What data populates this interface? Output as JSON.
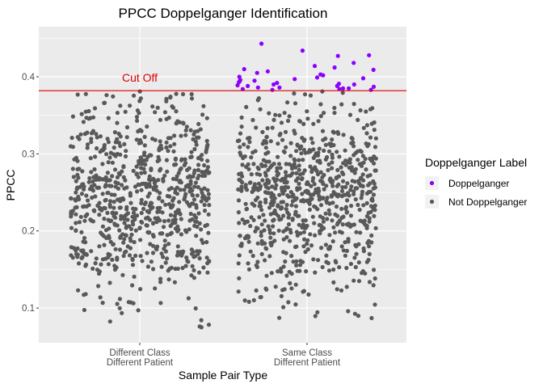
{
  "chart_data": {
    "type": "scatter",
    "title": "PPCC Doppelganger Identification",
    "xlabel": "Sample Pair Type",
    "ylabel": "PPCC",
    "categories": [
      "Different Class\nDifferent Patient",
      "Same Class\nDifferent Patient"
    ],
    "ylim": [
      0.055,
      0.465
    ],
    "yticks": [
      0.1,
      0.2,
      0.3,
      0.4
    ],
    "ytick_labels": [
      "0.1",
      "0.2",
      "0.3",
      "0.4"
    ],
    "grid": true,
    "jitter": "horizontal",
    "reference_line": {
      "y": 0.382,
      "color": "#DD0000",
      "label": "Cut Off"
    },
    "legend": {
      "title": "Doppelganger Label",
      "position": "right",
      "entries": [
        {
          "label": "Doppelganger",
          "color": "#8B00FF"
        },
        {
          "label": "Not Doppelganger",
          "color": "#595959"
        }
      ]
    },
    "series": [
      {
        "name": "Doppelganger",
        "color": "#8B00FF",
        "points": [
          {
            "x": "Same Class\nDifferent Patient",
            "y": 0.443
          },
          {
            "x": "Same Class\nDifferent Patient",
            "y": 0.434
          },
          {
            "x": "Same Class\nDifferent Patient",
            "y": 0.427
          },
          {
            "x": "Same Class\nDifferent Patient",
            "y": 0.428
          },
          {
            "x": "Same Class\nDifferent Patient",
            "y": 0.418
          },
          {
            "x": "Same Class\nDifferent Patient",
            "y": 0.414
          },
          {
            "x": "Same Class\nDifferent Patient",
            "y": 0.412
          },
          {
            "x": "Same Class\nDifferent Patient",
            "y": 0.41
          },
          {
            "x": "Same Class\nDifferent Patient",
            "y": 0.409
          },
          {
            "x": "Same Class\nDifferent Patient",
            "y": 0.407
          },
          {
            "x": "Same Class\nDifferent Patient",
            "y": 0.405
          },
          {
            "x": "Same Class\nDifferent Patient",
            "y": 0.403
          },
          {
            "x": "Same Class\nDifferent Patient",
            "y": 0.402
          },
          {
            "x": "Same Class\nDifferent Patient",
            "y": 0.4
          },
          {
            "x": "Same Class\nDifferent Patient",
            "y": 0.399
          },
          {
            "x": "Same Class\nDifferent Patient",
            "y": 0.398
          },
          {
            "x": "Same Class\nDifferent Patient",
            "y": 0.397
          },
          {
            "x": "Same Class\nDifferent Patient",
            "y": 0.396
          },
          {
            "x": "Same Class\nDifferent Patient",
            "y": 0.395
          },
          {
            "x": "Same Class\nDifferent Patient",
            "y": 0.394
          },
          {
            "x": "Same Class\nDifferent Patient",
            "y": 0.393
          },
          {
            "x": "Same Class\nDifferent Patient",
            "y": 0.392
          },
          {
            "x": "Same Class\nDifferent Patient",
            "y": 0.391
          },
          {
            "x": "Same Class\nDifferent Patient",
            "y": 0.39
          },
          {
            "x": "Same Class\nDifferent Patient",
            "y": 0.39
          },
          {
            "x": "Same Class\nDifferent Patient",
            "y": 0.389
          },
          {
            "x": "Same Class\nDifferent Patient",
            "y": 0.388
          },
          {
            "x": "Same Class\nDifferent Patient",
            "y": 0.388
          },
          {
            "x": "Same Class\nDifferent Patient",
            "y": 0.387
          },
          {
            "x": "Same Class\nDifferent Patient",
            "y": 0.386
          },
          {
            "x": "Same Class\nDifferent Patient",
            "y": 0.386
          },
          {
            "x": "Same Class\nDifferent Patient",
            "y": 0.385
          },
          {
            "x": "Same Class\nDifferent Patient",
            "y": 0.385
          },
          {
            "x": "Same Class\nDifferent Patient",
            "y": 0.384
          },
          {
            "x": "Same Class\nDifferent Patient",
            "y": 0.384
          },
          {
            "x": "Same Class\nDifferent Patient",
            "y": 0.383
          },
          {
            "x": "Same Class\nDifferent Patient",
            "y": 0.383
          }
        ]
      },
      {
        "name": "Not Doppelganger",
        "color": "#595959",
        "points_summary": [
          {
            "x": "Different Class\nDifferent Patient",
            "count": 780,
            "y_min": 0.075,
            "y_max": 0.381
          },
          {
            "x": "Same Class\nDifferent Patient",
            "count": 780,
            "y_min": 0.087,
            "y_max": 0.381
          }
        ]
      }
    ]
  }
}
